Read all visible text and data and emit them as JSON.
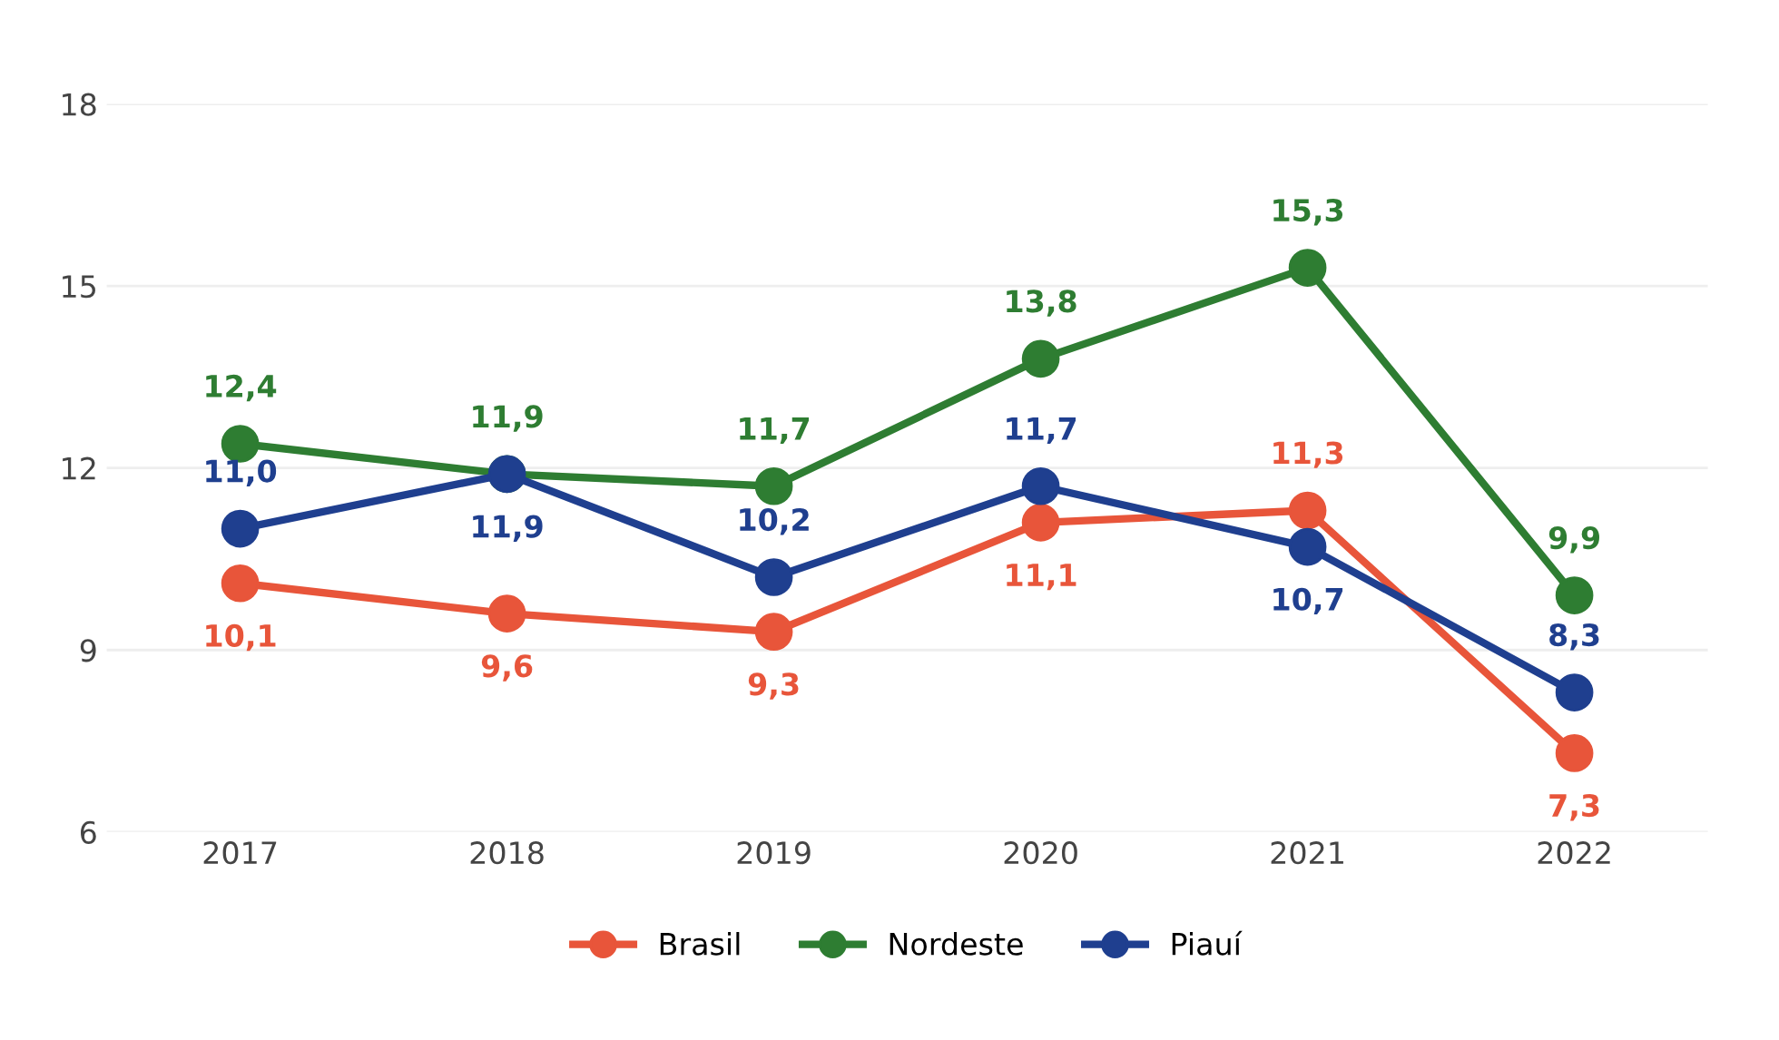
{
  "chart_data": {
    "type": "line",
    "categories": [
      "2017",
      "2018",
      "2019",
      "2020",
      "2021",
      "2022"
    ],
    "series": [
      {
        "name": "Brasil",
        "color": "#e8553a",
        "values": [
          10.1,
          9.6,
          9.3,
          11.1,
          11.3,
          7.3
        ],
        "value_labels": [
          "10,1",
          "9,6",
          "9,3",
          "11,1",
          "11,3",
          "7,3"
        ]
      },
      {
        "name": "Nordeste",
        "color": "#2e7d32",
        "values": [
          12.4,
          11.9,
          11.7,
          13.8,
          15.3,
          9.9
        ],
        "value_labels": [
          "12,4",
          "11,9",
          "11,7",
          "13,8",
          "15,3",
          "9,9"
        ]
      },
      {
        "name": "Piauí",
        "color": "#1f3f8f",
        "values": [
          11.0,
          11.9,
          10.2,
          11.7,
          10.7,
          8.3
        ],
        "value_labels": [
          "11,0",
          "11,9",
          "10,2",
          "11,7",
          "10,7",
          "8,3"
        ]
      }
    ],
    "ylim": [
      6,
      18
    ],
    "yticks": [
      6,
      9,
      12,
      15,
      18
    ],
    "grid": "y",
    "legend": "bottom",
    "marker": "circle",
    "line_style": "solid"
  }
}
